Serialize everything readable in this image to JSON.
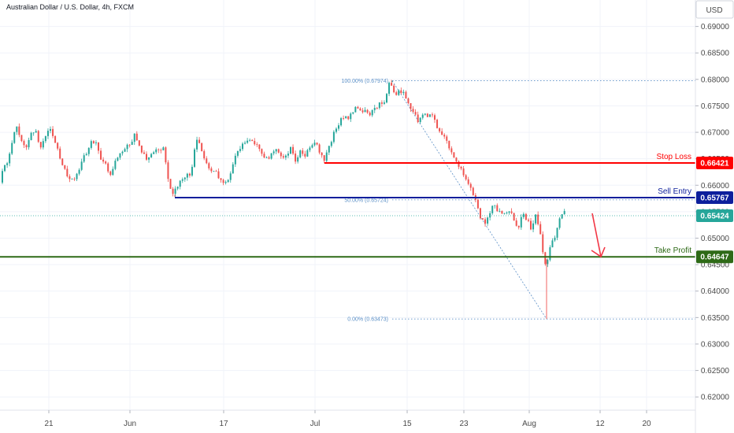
{
  "header": {
    "title": "Australian Dollar / U.S. Dollar, 4h, FXCM",
    "currency": "USD"
  },
  "colors": {
    "up": "#26a69a",
    "down": "#ef5350",
    "stop_loss": "#ff0000",
    "sell_entry": "#0d1f9c",
    "take_profit": "#2e6a17",
    "current": "#26a69a",
    "fib": "#5a8fc6",
    "arrow": "#f23645"
  },
  "chart_data": {
    "type": "candlestick",
    "symbol": "AUDUSD",
    "timeframe": "4h",
    "y_axis": {
      "min": 0.6175,
      "max": 0.695,
      "ticks": [
        "0.69000",
        "0.68500",
        "0.68000",
        "0.67500",
        "0.67000",
        "0.66500",
        "0.66000",
        "0.65500",
        "0.65000",
        "0.64500",
        "0.64000",
        "0.63500",
        "0.63000",
        "0.62500",
        "0.62000"
      ]
    },
    "x_axis": {
      "ticks": [
        "21",
        "Jun",
        "17",
        "Jul",
        "15",
        "23",
        "Aug",
        "12",
        "20"
      ]
    },
    "levels": [
      {
        "name": "Stop Loss",
        "label": "Stop Loss",
        "value": 0.66421,
        "badge": "0.66421"
      },
      {
        "name": "Sell Entry",
        "label": "Sell Entry",
        "value": 0.65767,
        "badge": "0.65767"
      },
      {
        "name": "Take Profit",
        "label": "Take Profit",
        "value": 0.64647,
        "badge": "0.64647"
      }
    ],
    "current_price": {
      "value": 0.65424,
      "badge": "0.65424"
    },
    "fibonacci": [
      {
        "label": "100.00% (0.67974)",
        "value": 0.67974
      },
      {
        "label": "50.00% (0.65724)",
        "value": 0.65724
      },
      {
        "label": "0.00% (0.63473)",
        "value": 0.63473
      }
    ],
    "path": [
      [
        0,
        0.6595
      ],
      [
        6,
        0.6625
      ],
      [
        12,
        0.6645
      ],
      [
        18,
        0.6678
      ],
      [
        24,
        0.6712
      ],
      [
        30,
        0.6688
      ],
      [
        36,
        0.6672
      ],
      [
        42,
        0.6695
      ],
      [
        48,
        0.6705
      ],
      [
        54,
        0.6668
      ],
      [
        60,
        0.6692
      ],
      [
        66,
        0.6705
      ],
      [
        72,
        0.6688
      ],
      [
        78,
        0.6655
      ],
      [
        84,
        0.6632
      ],
      [
        90,
        0.6612
      ],
      [
        96,
        0.6608
      ],
      [
        102,
        0.6625
      ],
      [
        108,
        0.6652
      ],
      [
        114,
        0.6665
      ],
      [
        120,
        0.6682
      ],
      [
        126,
        0.6678
      ],
      [
        132,
        0.6648
      ],
      [
        138,
        0.6638
      ],
      [
        144,
        0.6615
      ],
      [
        150,
        0.6645
      ],
      [
        156,
        0.6658
      ],
      [
        162,
        0.6668
      ],
      [
        168,
        0.6678
      ],
      [
        174,
        0.6695
      ],
      [
        180,
        0.6672
      ],
      [
        186,
        0.6655
      ],
      [
        192,
        0.6648
      ],
      [
        198,
        0.6662
      ],
      [
        204,
        0.6668
      ],
      [
        210,
        0.6672
      ],
      [
        216,
        0.6615
      ],
      [
        222,
        0.6582
      ],
      [
        228,
        0.6598
      ],
      [
        234,
        0.6612
      ],
      [
        240,
        0.6618
      ],
      [
        246,
        0.6625
      ],
      [
        252,
        0.6688
      ],
      [
        258,
        0.6672
      ],
      [
        264,
        0.6642
      ],
      [
        270,
        0.6632
      ],
      [
        276,
        0.6625
      ],
      [
        282,
        0.6612
      ],
      [
        288,
        0.6602
      ],
      [
        294,
        0.6612
      ],
      [
        300,
        0.6645
      ],
      [
        306,
        0.6665
      ],
      [
        312,
        0.6678
      ],
      [
        318,
        0.6685
      ],
      [
        324,
        0.6682
      ],
      [
        330,
        0.6672
      ],
      [
        336,
        0.6658
      ],
      [
        342,
        0.6648
      ],
      [
        348,
        0.6662
      ],
      [
        354,
        0.6668
      ],
      [
        360,
        0.6655
      ],
      [
        366,
        0.6652
      ],
      [
        372,
        0.6668
      ],
      [
        378,
        0.6645
      ],
      [
        384,
        0.6665
      ],
      [
        390,
        0.6652
      ],
      [
        396,
        0.6672
      ],
      [
        402,
        0.6685
      ],
      [
        408,
        0.6665
      ],
      [
        414,
        0.6648
      ],
      [
        420,
        0.6668
      ],
      [
        426,
        0.6695
      ],
      [
        432,
        0.6712
      ],
      [
        438,
        0.6732
      ],
      [
        444,
        0.6725
      ],
      [
        450,
        0.6738
      ],
      [
        456,
        0.6748
      ],
      [
        462,
        0.6738
      ],
      [
        468,
        0.6742
      ],
      [
        474,
        0.6735
      ],
      [
        480,
        0.6745
      ],
      [
        486,
        0.6755
      ],
      [
        492,
        0.6762
      ],
      [
        498,
        0.6795
      ],
      [
        504,
        0.6768
      ],
      [
        510,
        0.6778
      ],
      [
        516,
        0.6772
      ],
      [
        522,
        0.6755
      ],
      [
        528,
        0.6738
      ],
      [
        534,
        0.6722
      ],
      [
        540,
        0.6738
      ],
      [
        546,
        0.6725
      ],
      [
        552,
        0.6735
      ],
      [
        558,
        0.6712
      ],
      [
        564,
        0.6698
      ],
      [
        570,
        0.6688
      ],
      [
        576,
        0.6662
      ],
      [
        582,
        0.6642
      ],
      [
        588,
        0.6632
      ],
      [
        594,
        0.6615
      ],
      [
        600,
        0.6595
      ],
      [
        606,
        0.6575
      ],
      [
        612,
        0.6545
      ],
      [
        618,
        0.6525
      ],
      [
        624,
        0.6548
      ],
      [
        630,
        0.6562
      ],
      [
        636,
        0.6552
      ],
      [
        642,
        0.6545
      ],
      [
        648,
        0.6555
      ],
      [
        654,
        0.6542
      ],
      [
        660,
        0.6515
      ],
      [
        666,
        0.6545
      ],
      [
        672,
        0.6535
      ],
      [
        678,
        0.6515
      ],
      [
        684,
        0.6545
      ],
      [
        690,
        0.6498
      ],
      [
        696,
        0.6442
      ],
      [
        702,
        0.6488
      ],
      [
        708,
        0.6505
      ],
      [
        714,
        0.6535
      ],
      [
        717,
        0.6548
      ]
    ],
    "extremes": [
      {
        "x": 498,
        "high": 0.67974
      },
      {
        "x": 694,
        "low": 0.63473
      },
      {
        "x": 222,
        "low": 0.6578
      }
    ]
  }
}
